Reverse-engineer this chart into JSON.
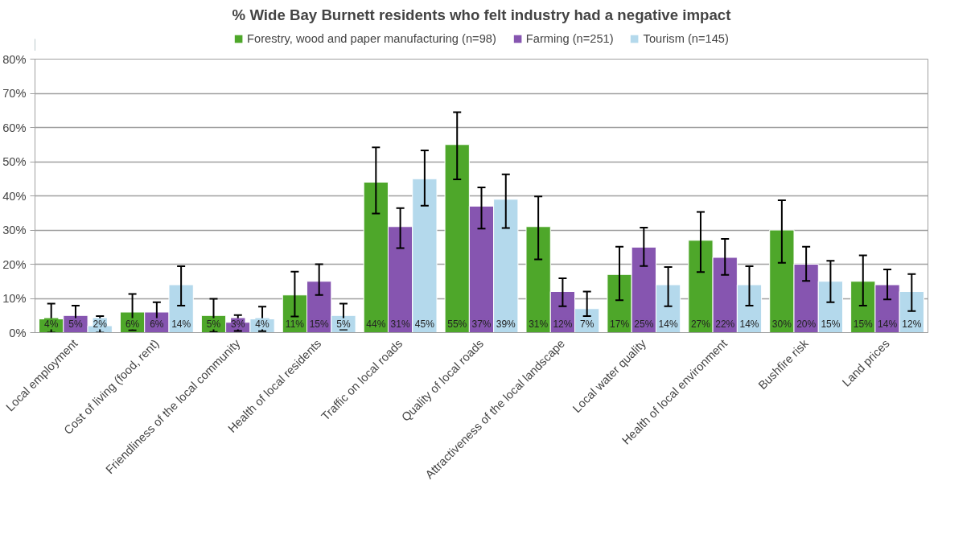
{
  "chart_data": {
    "type": "bar",
    "title": "% Wide Bay Burnett residents who felt industry had a negative impact",
    "categories": [
      "Local employment",
      "Cost of living (food, rent)",
      "Friendliness of the local community",
      "Health of local residents",
      "Traffic on local roads",
      "Quality of local roads",
      "Attractiveness of the local landscape",
      "Local water quality",
      "Health of local environment",
      "Bushfire risk",
      "Land prices"
    ],
    "series": [
      {
        "name": "Forestry, wood and paper manufacturing (n=98)",
        "color": "#4ea72a",
        "values": [
          4,
          6,
          5,
          11,
          44,
          55,
          31,
          17,
          27,
          30,
          15
        ],
        "value_labels": [
          "4%",
          "6%",
          "5%",
          "11%",
          "44%",
          "55%",
          "31%",
          "17%",
          "27%",
          "30%",
          "15%"
        ],
        "errors": [
          [
            0,
            8.5
          ],
          [
            0.7,
            11.3
          ],
          [
            0.2,
            9.9
          ],
          [
            4.7,
            17.8
          ],
          [
            34.8,
            54.2
          ],
          [
            44.8,
            64.5
          ],
          [
            21.4,
            39.8
          ],
          [
            9.5,
            25.1
          ],
          [
            17.7,
            35.3
          ],
          [
            20.4,
            38.7
          ],
          [
            7.9,
            22.6
          ]
        ]
      },
      {
        "name": "Farming (n=251)",
        "color": "#8655b0",
        "values": [
          5,
          6,
          3,
          15,
          31,
          37,
          12,
          25,
          22,
          20,
          14
        ],
        "value_labels": [
          "5%",
          "6%",
          "3%",
          "15%",
          "31%",
          "37%",
          "12%",
          "25%",
          "22%",
          "20%",
          "14%"
        ],
        "errors": [
          [
            2.1,
            7.9
          ],
          [
            2.7,
            8.9
          ],
          [
            0.5,
            5.1
          ],
          [
            11,
            20
          ],
          [
            24.7,
            36.4
          ],
          [
            30.4,
            42.5
          ],
          [
            7.7,
            15.9
          ],
          [
            19.5,
            30.7
          ],
          [
            16.9,
            27.4
          ],
          [
            15.1,
            25.1
          ],
          [
            9.7,
            18.5
          ]
        ]
      },
      {
        "name": "Tourism (n=145)",
        "color": "#b4d9ec",
        "values": [
          2,
          14,
          4,
          5,
          45,
          39,
          7,
          14,
          14,
          15,
          12
        ],
        "value_labels": [
          "2%",
          "14%",
          "4%",
          "5%",
          "45%",
          "39%",
          "7%",
          "14%",
          "14%",
          "15%",
          "12%"
        ],
        "errors": [
          [
            0,
            4.8
          ],
          [
            7.9,
            19.4
          ],
          [
            0.4,
            7.6
          ],
          [
            0.9,
            8.5
          ],
          [
            37.1,
            53.3
          ],
          [
            30.6,
            46.3
          ],
          [
            4.8,
            12.0
          ],
          [
            7.7,
            19.2
          ],
          [
            7.9,
            19.4
          ],
          [
            8.9,
            21.0
          ],
          [
            6.3,
            17.1
          ]
        ]
      }
    ],
    "ylim": [
      0,
      80
    ],
    "yticks": [
      {
        "value": 0,
        "label": "0%"
      },
      {
        "value": 10,
        "label": "10%"
      },
      {
        "value": 20,
        "label": "20%"
      },
      {
        "value": 30,
        "label": "30%"
      },
      {
        "value": 40,
        "label": "40%"
      },
      {
        "value": 50,
        "label": "50%"
      },
      {
        "value": 60,
        "label": "60%"
      },
      {
        "value": 70,
        "label": "70%"
      },
      {
        "value": 80,
        "label": "80%"
      }
    ],
    "grid": "y",
    "legend": "top",
    "data_labels": true
  }
}
